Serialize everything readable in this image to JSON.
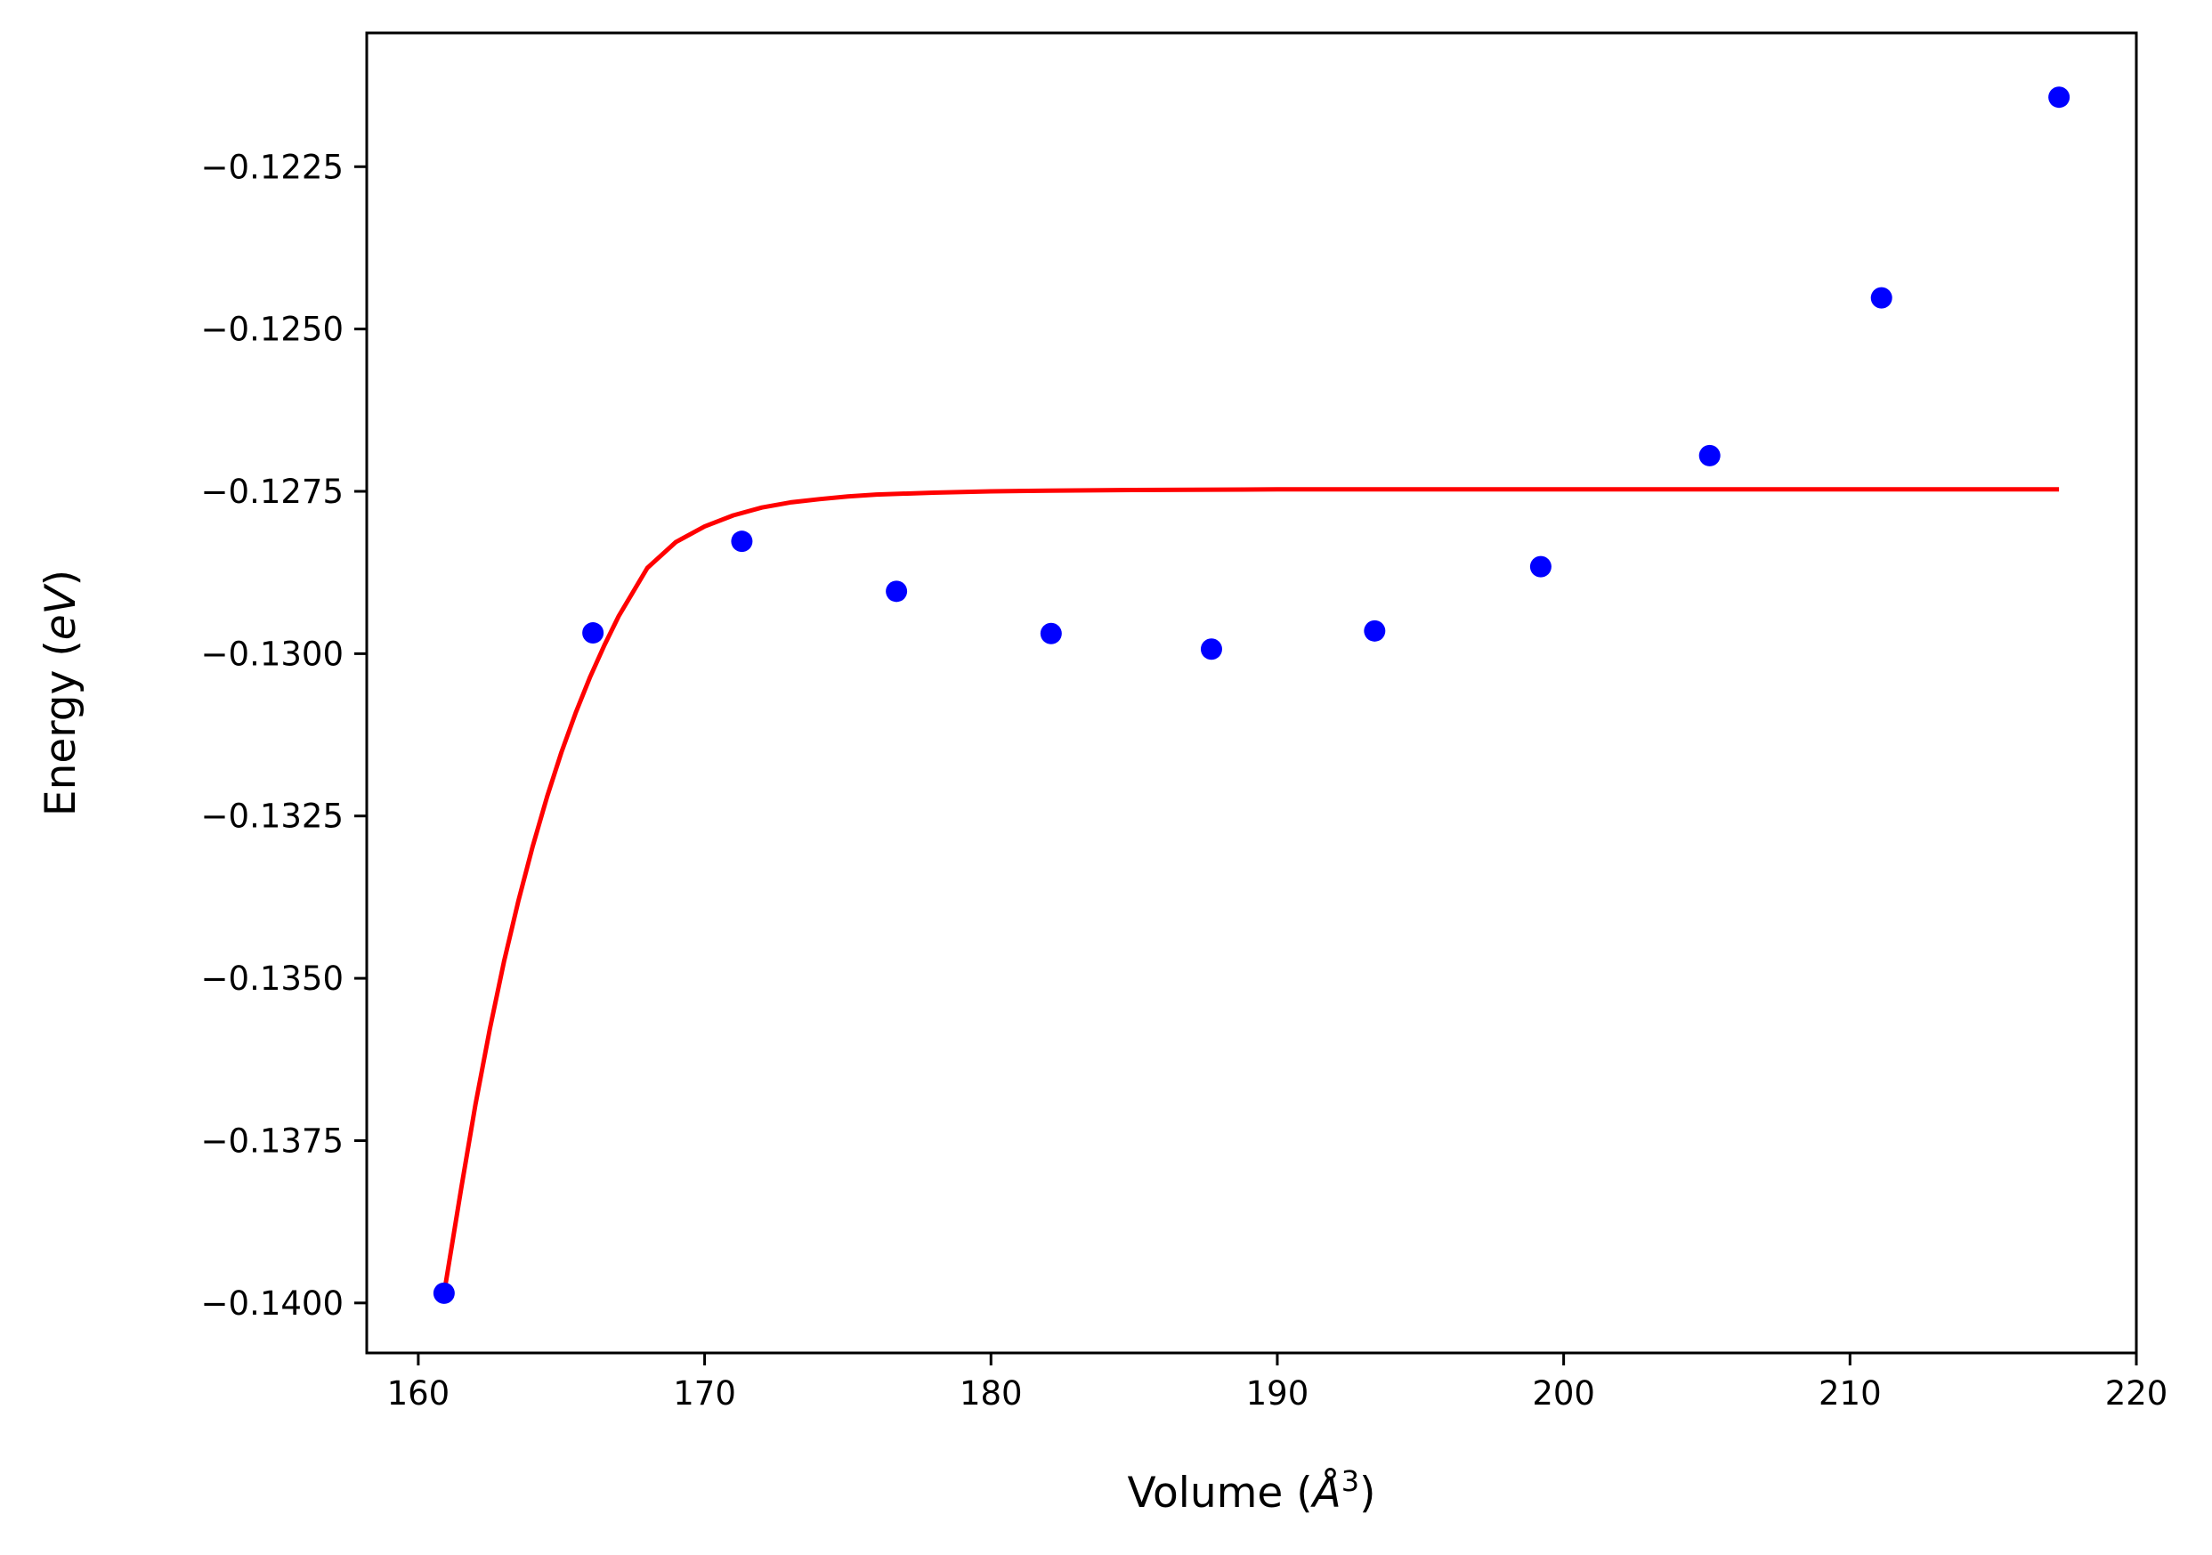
{
  "chart_data": {
    "type": "scatter",
    "xlabel": {
      "prefix": "Volume (",
      "unit": "Å",
      "exponent": "3",
      "suffix": ")"
    },
    "ylabel": {
      "prefix": "Energy (",
      "unit": "eV",
      "suffix": ")"
    },
    "xlim": [
      158.2,
      220.0
    ],
    "ylim": [
      -0.14077,
      -0.12044
    ],
    "xticks": [
      160,
      170,
      180,
      190,
      200,
      210,
      220
    ],
    "xtick_labels": [
      "160",
      "170",
      "180",
      "190",
      "200",
      "210",
      "220"
    ],
    "yticks": [
      -0.14,
      -0.1375,
      -0.135,
      -0.1325,
      -0.13,
      -0.1275,
      -0.125,
      -0.1225
    ],
    "ytick_labels": [
      "−0.1400",
      "−0.1375",
      "−0.1350",
      "−0.1325",
      "−0.1300",
      "−0.1275",
      "−0.1250",
      "−0.1225"
    ],
    "grid": false,
    "series": [
      {
        "kind": "scatter",
        "color": "#0000ff",
        "x": [
          160.9,
          166.1,
          171.3,
          176.7,
          182.1,
          187.7,
          193.4,
          199.2,
          205.1,
          211.1,
          217.3
        ],
        "y": [
          -0.13985,
          -0.12968,
          -0.12827,
          -0.12904,
          -0.12969,
          -0.12993,
          -0.12965,
          -0.12866,
          -0.12695,
          -0.12452,
          -0.12143
        ]
      },
      {
        "kind": "line",
        "color": "#ff0000",
        "x": [
          160.9,
          161.5,
          162.0,
          162.5,
          163.0,
          163.5,
          164.0,
          164.5,
          165.0,
          165.5,
          166.0,
          166.5,
          167.0,
          168.0,
          169.0,
          170.0,
          171.0,
          172.0,
          173.0,
          174.0,
          175.0,
          176.0,
          178.0,
          180.0,
          182.0,
          185.0,
          190.0,
          200.0,
          210.0,
          217.3
        ],
        "y": [
          -0.13985,
          -0.13823,
          -0.13694,
          -0.13578,
          -0.13473,
          -0.1338,
          -0.13296,
          -0.1322,
          -0.13152,
          -0.13091,
          -0.13036,
          -0.12987,
          -0.12942,
          -0.12868,
          -0.12828,
          -0.12804,
          -0.12787,
          -0.12775,
          -0.12767,
          -0.12762,
          -0.12758,
          -0.12755,
          -0.12752,
          -0.1275,
          -0.12749,
          -0.12748,
          -0.12747,
          -0.12747,
          -0.12747,
          -0.12747
        ]
      }
    ]
  }
}
